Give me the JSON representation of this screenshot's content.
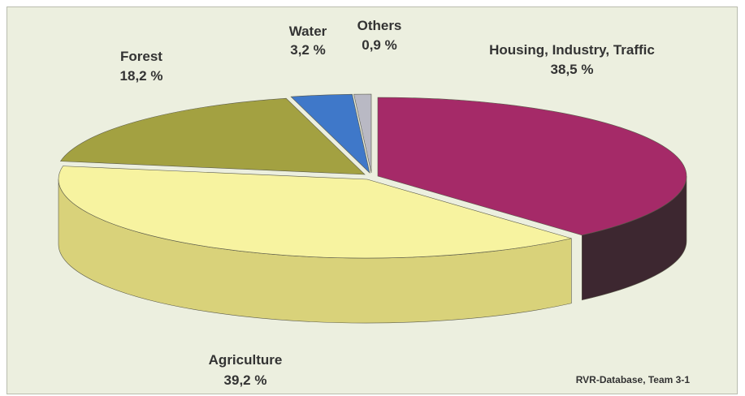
{
  "chart_data": {
    "type": "pie",
    "title": "",
    "style": "3d-exploded",
    "slices": [
      {
        "name": "Housing, Industry, Traffic",
        "value": 38.5,
        "display": "38,5 %",
        "color": "#a52a68",
        "side_color": "#3d2730"
      },
      {
        "name": "Agriculture",
        "value": 39.2,
        "display": "39,2 %",
        "color": "#f7f3a0",
        "side_color": "#d9d27a"
      },
      {
        "name": "Forest",
        "value": 18.2,
        "display": "18,2 %",
        "color": "#a3a141",
        "side_color": "#7d7b31"
      },
      {
        "name": "Water",
        "value": 3.2,
        "display": "3,2 %",
        "color": "#3f78c9",
        "side_color": "#2c5591"
      },
      {
        "name": "Others",
        "value": 0.9,
        "display": "0,9 %",
        "color": "#b9b9c4",
        "side_color": "#8c8c96"
      }
    ]
  },
  "source_note": "RVR-Database, Team 3-1"
}
